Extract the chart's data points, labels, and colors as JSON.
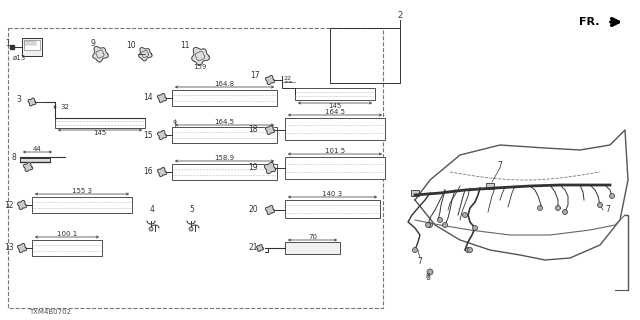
{
  "bg": "#ffffff",
  "dg": "#333333",
  "lg": "#888888",
  "part_number": "TXM4B0702",
  "fr_label": "FR.",
  "ref2_label": "2",
  "items": {
    "1_label": "1",
    "1_sub": "ø13",
    "3_label": "3",
    "3_dim": "32",
    "3_dim2": "145",
    "8_label": "8",
    "8_dim": "44",
    "9_label": "9",
    "10_label": "10",
    "11_label": "11",
    "11_dim": "159",
    "12_label": "12",
    "12_dim": "155 3",
    "13_label": "13",
    "13_dim": "100 1",
    "14_label": "14",
    "14_dim": "164.8",
    "15_label": "15",
    "15_dim": "9",
    "15_dim2": "164.5",
    "16_label": "16",
    "16_dim": "158.9",
    "17_label": "17",
    "17_dim": "22",
    "17_dim2": "145",
    "18_label": "18",
    "18_dim": "164 5",
    "18_dim2": "101 5",
    "19_label": "19",
    "20_label": "20",
    "20_dim": "140 3",
    "21_label": "21",
    "21_dim": "70",
    "4_label": "4",
    "5_label": "5",
    "6_label": "6",
    "7_label": "7"
  }
}
